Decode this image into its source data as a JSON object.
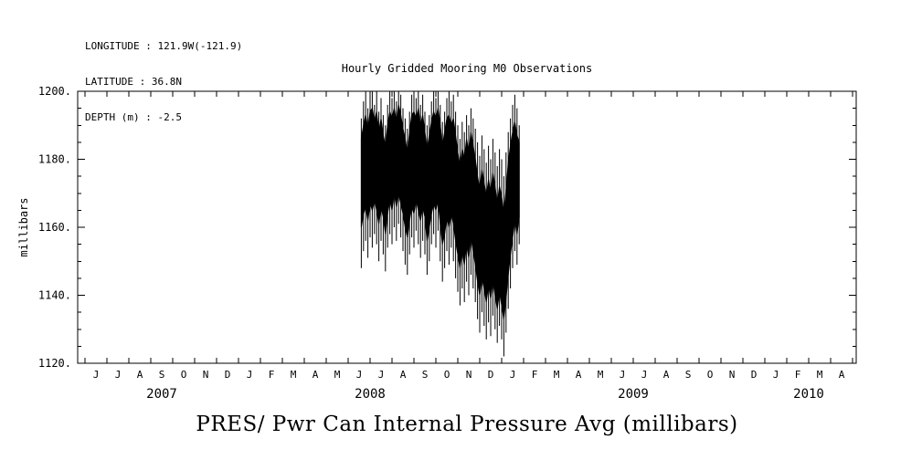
{
  "header": {
    "longitude": "LONGITUDE : 121.9W(-121.9)",
    "latitude": "LATITUDE : 36.8N",
    "depth": "DEPTH (m) : -2.5"
  },
  "title": "Hourly Gridded Mooring M0 Observations",
  "bottom_title": "PRES/ Pwr Can Internal Pressure Avg (millibars)",
  "chart_data": {
    "type": "line",
    "title": "Hourly Gridded Mooring M0 Observations",
    "series_name": "PRES/ Pwr Can Internal Pressure Avg (millibars)",
    "xlabel": "",
    "ylabel": "millibars",
    "ylim": [
      1120,
      1200
    ],
    "y_major_ticks": [
      1120,
      1140,
      1160,
      1180,
      1200
    ],
    "y_tick_labels": [
      "1120.",
      "1140.",
      "1160.",
      "1180.",
      "1200."
    ],
    "x_axis_note": "month letters starting June 2007 through April 2010",
    "x_month_labels": [
      "J",
      "J",
      "A",
      "S",
      "O",
      "N",
      "D",
      "J",
      "F",
      "M",
      "A",
      "M",
      "J",
      "J",
      "A",
      "S",
      "O",
      "N",
      "D",
      "J",
      "F",
      "M",
      "A",
      "M",
      "J",
      "J",
      "A",
      "S",
      "O",
      "N",
      "D",
      "J",
      "F",
      "M",
      "A"
    ],
    "x_year_labels": [
      {
        "label": "2007",
        "center_month": 3
      },
      {
        "label": "2008",
        "center_month": 12.5
      },
      {
        "label": "2009",
        "center_month": 24.5
      },
      {
        "label": "2010",
        "center_month": 32.5
      }
    ],
    "grid": false,
    "line_color": "#000000",
    "data_span_note": "dense hourly noise from mid-June 2008 to late January 2009; values mostly 1150-1200 mb, dropping in Dec 2008 - Jan 2009 with minimum near 1122 mb",
    "samples_format": [
      "month_index_from_jun2007",
      "spike_min_mb",
      "spike_max_mb",
      "band_min_mb",
      "band_max_mb"
    ],
    "samples": [
      [
        12.6,
        1148,
        1192,
        1160,
        1186
      ],
      [
        12.7,
        1153,
        1197,
        1164,
        1190
      ],
      [
        12.8,
        1156,
        1200,
        1166,
        1193
      ],
      [
        12.9,
        1151,
        1195,
        1162,
        1189
      ],
      [
        13.0,
        1157,
        1199,
        1167,
        1194
      ],
      [
        13.1,
        1154,
        1200,
        1165,
        1195
      ],
      [
        13.2,
        1158,
        1196,
        1168,
        1191
      ],
      [
        13.3,
        1155,
        1200,
        1165,
        1194
      ],
      [
        13.4,
        1150,
        1194,
        1161,
        1188
      ],
      [
        13.5,
        1156,
        1198,
        1166,
        1192
      ],
      [
        13.6,
        1152,
        1193,
        1163,
        1187
      ],
      [
        13.7,
        1147,
        1190,
        1158,
        1184
      ],
      [
        13.8,
        1154,
        1196,
        1164,
        1190
      ],
      [
        13.9,
        1158,
        1200,
        1168,
        1194
      ],
      [
        14.0,
        1155,
        1198,
        1165,
        1192
      ],
      [
        14.1,
        1160,
        1200,
        1170,
        1195
      ],
      [
        14.2,
        1156,
        1197,
        1166,
        1191
      ],
      [
        14.3,
        1161,
        1200,
        1170,
        1196
      ],
      [
        14.4,
        1157,
        1199,
        1167,
        1193
      ],
      [
        14.5,
        1153,
        1195,
        1164,
        1189
      ],
      [
        14.6,
        1149,
        1192,
        1160,
        1186
      ],
      [
        14.7,
        1146,
        1189,
        1157,
        1182
      ],
      [
        14.8,
        1152,
        1194,
        1162,
        1188
      ],
      [
        14.9,
        1157,
        1199,
        1166,
        1193
      ],
      [
        15.0,
        1154,
        1200,
        1164,
        1194
      ],
      [
        15.1,
        1159,
        1198,
        1168,
        1192
      ],
      [
        15.2,
        1155,
        1200,
        1165,
        1195
      ],
      [
        15.3,
        1151,
        1196,
        1162,
        1190
      ],
      [
        15.4,
        1156,
        1199,
        1166,
        1193
      ],
      [
        15.5,
        1152,
        1194,
        1163,
        1188
      ],
      [
        15.6,
        1146,
        1190,
        1156,
        1183
      ],
      [
        15.7,
        1150,
        1193,
        1160,
        1187
      ],
      [
        15.8,
        1155,
        1197,
        1164,
        1191
      ],
      [
        15.9,
        1158,
        1200,
        1167,
        1194
      ],
      [
        16.0,
        1154,
        1198,
        1165,
        1192
      ],
      [
        16.1,
        1159,
        1200,
        1168,
        1195
      ],
      [
        16.2,
        1150,
        1196,
        1161,
        1190
      ],
      [
        16.3,
        1144,
        1191,
        1155,
        1184
      ],
      [
        16.4,
        1148,
        1194,
        1158,
        1188
      ],
      [
        16.5,
        1153,
        1198,
        1163,
        1192
      ],
      [
        16.6,
        1149,
        1200,
        1160,
        1193
      ],
      [
        16.7,
        1154,
        1197,
        1164,
        1190
      ],
      [
        16.8,
        1150,
        1199,
        1161,
        1192
      ],
      [
        16.9,
        1145,
        1194,
        1156,
        1187
      ],
      [
        17.0,
        1141,
        1190,
        1152,
        1182
      ],
      [
        17.1,
        1137,
        1186,
        1148,
        1178
      ],
      [
        17.2,
        1142,
        1191,
        1153,
        1183
      ],
      [
        17.3,
        1138,
        1188,
        1149,
        1180
      ],
      [
        17.4,
        1144,
        1193,
        1155,
        1186
      ],
      [
        17.5,
        1140,
        1190,
        1151,
        1182
      ],
      [
        17.6,
        1146,
        1195,
        1157,
        1188
      ],
      [
        17.7,
        1142,
        1192,
        1153,
        1184
      ],
      [
        17.8,
        1138,
        1189,
        1149,
        1180
      ],
      [
        17.9,
        1133,
        1185,
        1144,
        1175
      ],
      [
        18.0,
        1129,
        1181,
        1140,
        1171
      ],
      [
        18.1,
        1135,
        1187,
        1145,
        1177
      ],
      [
        18.2,
        1131,
        1183,
        1142,
        1173
      ],
      [
        18.3,
        1127,
        1179,
        1138,
        1169
      ],
      [
        18.4,
        1132,
        1184,
        1143,
        1174
      ],
      [
        18.5,
        1128,
        1180,
        1139,
        1170
      ],
      [
        18.6,
        1134,
        1186,
        1144,
        1176
      ],
      [
        18.7,
        1130,
        1182,
        1140,
        1172
      ],
      [
        18.8,
        1126,
        1178,
        1136,
        1167
      ],
      [
        18.9,
        1131,
        1183,
        1141,
        1172
      ],
      [
        19.0,
        1127,
        1180,
        1137,
        1169
      ],
      [
        19.1,
        1122,
        1175,
        1133,
        1164
      ],
      [
        19.2,
        1129,
        1182,
        1139,
        1171
      ],
      [
        19.3,
        1136,
        1188,
        1146,
        1179
      ],
      [
        19.4,
        1142,
        1192,
        1152,
        1184
      ],
      [
        19.5,
        1148,
        1196,
        1157,
        1188
      ],
      [
        19.6,
        1153,
        1199,
        1162,
        1191
      ],
      [
        19.7,
        1149,
        1195,
        1158,
        1187
      ],
      [
        19.8,
        1155,
        1190,
        1163,
        1185
      ]
    ]
  }
}
